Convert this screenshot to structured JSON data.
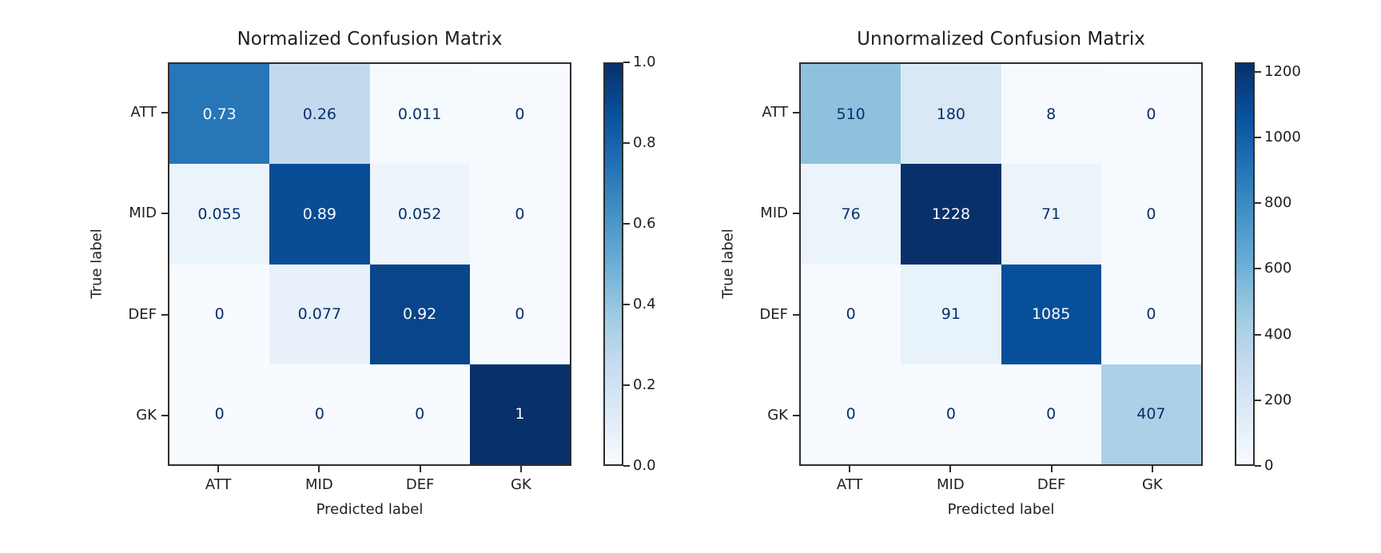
{
  "figure": {
    "background_color": "#ffffff",
    "text_color": "#1f1f1f",
    "spine_color": "#2e2e2e"
  },
  "colormap": {
    "name": "Blues",
    "anchors": [
      "#f7fbff",
      "#deebf7",
      "#c6dbef",
      "#9ecae1",
      "#6baed6",
      "#4292c6",
      "#2171b5",
      "#08519c",
      "#08306b"
    ],
    "cell_text_light": "#f7fbff",
    "cell_text_dark": "#08306b"
  },
  "chart_data": [
    {
      "type": "heatmap",
      "title": "Normalized Confusion Matrix",
      "xlabel": "Predicted label",
      "ylabel": "True label",
      "x_tick_labels": [
        "ATT",
        "MID",
        "DEF",
        "GK"
      ],
      "y_tick_labels": [
        "ATT",
        "MID",
        "DEF",
        "GK"
      ],
      "values": [
        [
          0.73,
          0.26,
          0.011,
          0
        ],
        [
          0.055,
          0.89,
          0.052,
          0
        ],
        [
          0,
          0.077,
          0.92,
          0
        ],
        [
          0,
          0,
          0,
          1
        ]
      ],
      "cell_labels": [
        [
          "0.73",
          "0.26",
          "0.011",
          "0"
        ],
        [
          "0.055",
          "0.89",
          "0.052",
          "0"
        ],
        [
          "0",
          "0.077",
          "0.92",
          "0"
        ],
        [
          "0",
          "0",
          "0",
          "1"
        ]
      ],
      "vmin": 0,
      "vmax": 1,
      "grid": false,
      "colorbar": {
        "position": "right",
        "tick_values": [
          0,
          0.2,
          0.4,
          0.6,
          0.8,
          1.0
        ],
        "tick_labels": [
          "0.0",
          "0.2",
          "0.4",
          "0.6",
          "0.8",
          "1.0"
        ]
      }
    },
    {
      "type": "heatmap",
      "title": "Unnormalized Confusion Matrix",
      "xlabel": "Predicted label",
      "ylabel": "True label",
      "x_tick_labels": [
        "ATT",
        "MID",
        "DEF",
        "GK"
      ],
      "y_tick_labels": [
        "ATT",
        "MID",
        "DEF",
        "GK"
      ],
      "values": [
        [
          510,
          180,
          8,
          0
        ],
        [
          76,
          1228,
          71,
          0
        ],
        [
          0,
          91,
          1085,
          0
        ],
        [
          0,
          0,
          0,
          407
        ]
      ],
      "cell_labels": [
        [
          "510",
          "180",
          "8",
          "0"
        ],
        [
          "76",
          "1228",
          "71",
          "0"
        ],
        [
          "0",
          "91",
          "1085",
          "0"
        ],
        [
          "0",
          "0",
          "0",
          "407"
        ]
      ],
      "vmin": 0,
      "vmax": 1228,
      "grid": false,
      "colorbar": {
        "position": "right",
        "tick_values": [
          0,
          200,
          400,
          600,
          800,
          1000,
          1200
        ],
        "tick_labels": [
          "0",
          "200",
          "400",
          "600",
          "800",
          "1000",
          "1200"
        ]
      }
    }
  ]
}
